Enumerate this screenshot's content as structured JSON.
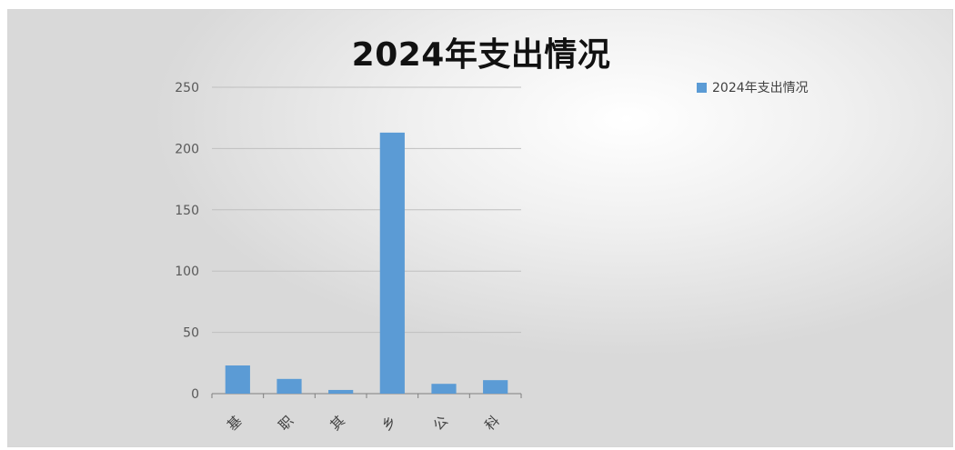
{
  "colors": {
    "series": "#5b9bd5",
    "grid": "#bfbfbf",
    "axis": "#7f7f7f"
  },
  "chart_data": {
    "type": "bar",
    "title": "2024年支出情况",
    "xlabel": "",
    "ylabel": "",
    "categories": [
      "基",
      "职",
      "其",
      "乡",
      "公",
      "科"
    ],
    "series": [
      {
        "name": "2024年支出情况",
        "values": [
          23,
          12,
          3,
          213,
          8,
          11
        ]
      }
    ],
    "ylim": [
      0,
      250
    ],
    "yticks": [
      0,
      50,
      100,
      150,
      200,
      250
    ],
    "grid": true,
    "legend": "right"
  }
}
